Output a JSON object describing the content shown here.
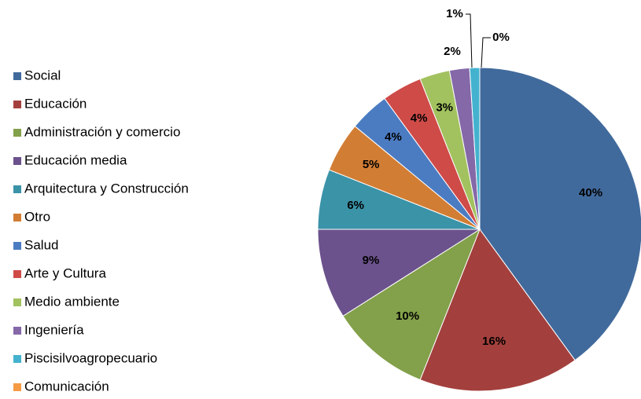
{
  "chart_data": {
    "type": "pie",
    "categories": [
      "Social",
      "Educación",
      "Administración y  comercio",
      "Educación media",
      "Arquitectura y Construcción",
      "Otro",
      "Salud",
      "Arte y Cultura",
      "Medio ambiente",
      "Ingeniería",
      "Piscisilvoagropecuario",
      "Comunicación"
    ],
    "values": [
      40,
      16,
      10,
      9,
      6,
      5,
      4,
      4,
      3,
      2,
      1,
      0
    ],
    "value_labels": [
      "40%",
      "16%",
      "10%",
      "9%",
      "6%",
      "5%",
      "4%",
      "4%",
      "3%",
      "2%",
      "1%",
      "0%"
    ],
    "colors": [
      "#416a9c",
      "#a3403d",
      "#83a04a",
      "#6b528c",
      "#3b93a8",
      "#d27d34",
      "#4b7cc2",
      "#cf4b48",
      "#a2c25f",
      "#8468a8",
      "#44b2cf",
      "#f59b46"
    ],
    "legend": "left"
  }
}
